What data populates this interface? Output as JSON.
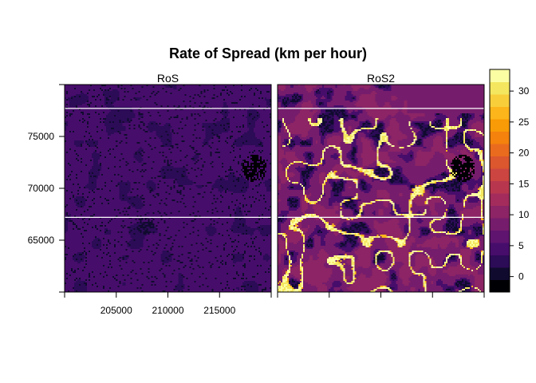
{
  "chart_data": {
    "type": "heatmap",
    "title": "Rate of Spread (km per hour)",
    "panels": [
      {
        "name": "RoS",
        "level": "low",
        "range_note": "values mostly 0-5"
      },
      {
        "name": "RoS2",
        "level": "high",
        "range_note": "values mostly 5-15 with hotspots near 30"
      }
    ],
    "x_ticks": [
      205000,
      210000,
      215000
    ],
    "y_ticks": [
      65000,
      70000,
      75000
    ],
    "xlim": [
      200000,
      220000
    ],
    "ylim": [
      60000,
      80000
    ],
    "hlines": [
      77700,
      67200
    ],
    "colorbar": {
      "ticks": [
        0,
        5,
        10,
        15,
        20,
        25,
        30
      ],
      "range": [
        -2.5,
        33.5
      ],
      "palette": [
        "#000004",
        "#100b2e",
        "#2c0b57",
        "#470d6b",
        "#5f146f",
        "#761c6c",
        "#8c2465",
        "#a32c5c",
        "#b9374e",
        "#cc4540",
        "#dc562e",
        "#ea6b1e",
        "#f4820d",
        "#f99b06",
        "#fcb51b",
        "#f9ce3b",
        "#f4e75f",
        "#fcfea4"
      ]
    }
  },
  "colors": {
    "frame": "#000000",
    "hline": "#ffffff",
    "low_panel_base": "#2c1460",
    "high_panel_base": "#6a1e76"
  }
}
